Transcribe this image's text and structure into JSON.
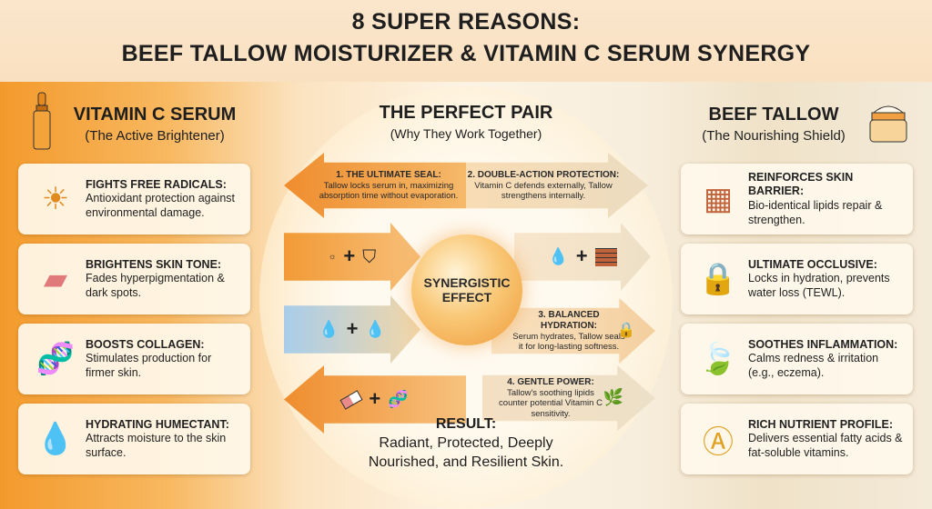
{
  "title": {
    "line1": "8 SUPER REASONS:",
    "line2": "BEEF TALLOW MOISTURIZER & VITAMIN C SERUM SYNERGY"
  },
  "left": {
    "heading": "VITAMIN C SERUM",
    "subheading": "(The Active Brightener)",
    "icon": "dropper-bottle-icon",
    "cards": [
      {
        "title": "FIGHTS FREE RADICALS:",
        "text": "Antioxidant protection against environmental damage.",
        "icon": "sun-shield-icon"
      },
      {
        "title": "BRIGHTENS SKIN TONE:",
        "text": "Fades hyperpigmentation & dark spots.",
        "icon": "eraser-icon"
      },
      {
        "title": "BOOSTS COLLAGEN:",
        "text": "Stimulates production for firmer skin.",
        "icon": "dna-icon"
      },
      {
        "title": "HYDRATING HUMECTANT:",
        "text": "Attracts moisture to the skin surface.",
        "icon": "water-drop-icon"
      }
    ]
  },
  "right": {
    "heading": "BEEF TALLOW",
    "subheading": "(The Nourishing Shield)",
    "icon": "cream-jar-icon",
    "cards": [
      {
        "title": "REINFORCES SKIN BARRIER:",
        "text": "Bio-identical lipids repair & strengthen.",
        "icon": "brick-wall-shield-icon"
      },
      {
        "title": "ULTIMATE OCCLUSIVE:",
        "text": "Locks in hydration, prevents water loss (TEWL).",
        "icon": "lock-drop-icon"
      },
      {
        "title": "SOOTHES INFLAMMATION:",
        "text": "Calms redness & irritation (e.g., eczema).",
        "icon": "leaves-icon"
      },
      {
        "title": "RICH NUTRIENT PROFILE:",
        "text": "Delivers essential fatty acids & fat-soluble vitamins.",
        "icon": "vitamins-icon"
      }
    ]
  },
  "center": {
    "heading": "THE PERFECT PAIR",
    "subheading": "(Why They Work Together)",
    "core": "SYNERGISTIC EFFECT",
    "reasons": [
      {
        "title": "1. THE ULTIMATE SEAL:",
        "text": "Tallow locks serum in, maximizing absorption time without evaporation."
      },
      {
        "title": "2. DOUBLE-ACTION PROTECTION:",
        "text": "Vitamin C defends externally, Tallow strengthens internally."
      },
      {
        "title": "3. BALANCED HYDRATION:",
        "text": "Serum hydrates, Tallow seals it for long-lasting softness."
      },
      {
        "title": "4. GENTLE POWER:",
        "text": "Tallow's soothing lipids counter potential Vitamin C sensitivity."
      }
    ],
    "plus": "+"
  },
  "result": {
    "label": "RESULT:",
    "text": "Radiant, Protected, Deeply Nourished, and Resilient Skin."
  },
  "colors": {
    "orange": "#f08a24",
    "cream": "#f4ead8",
    "text": "#1e1e1e"
  }
}
